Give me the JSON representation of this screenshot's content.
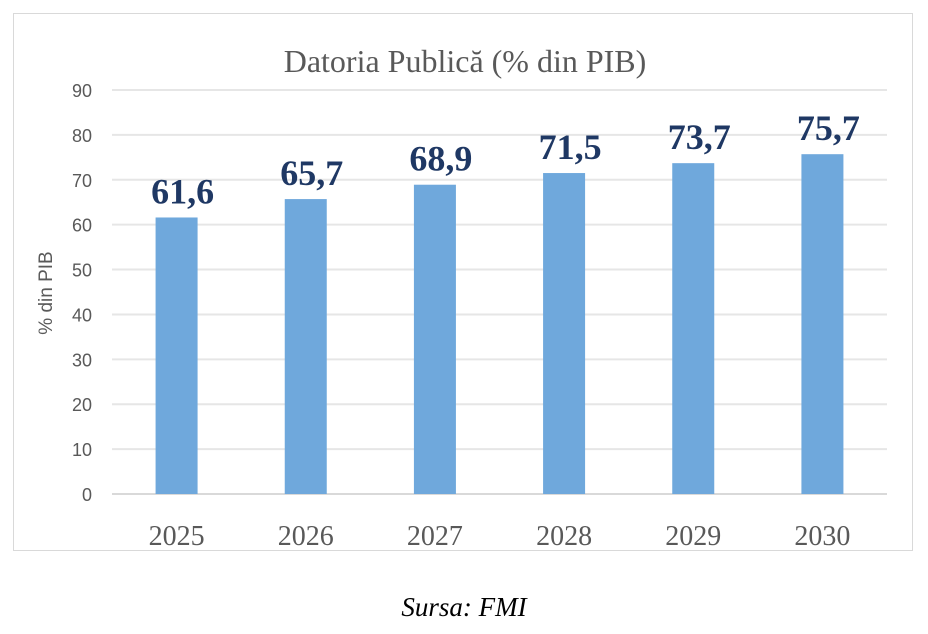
{
  "chart_data": {
    "type": "bar",
    "title": "Datoria Publică (% din PIB)",
    "xlabel": "",
    "ylabel": "% din PIB",
    "categories": [
      "2025",
      "2026",
      "2027",
      "2028",
      "2029",
      "2030"
    ],
    "values": [
      61.6,
      65.7,
      68.9,
      71.5,
      73.7,
      75.7
    ],
    "value_labels": [
      "61,6",
      "65,7",
      "68,9",
      "71,5",
      "73,7",
      "75,7"
    ],
    "ylim": [
      0,
      90
    ],
    "yticks": [
      "0",
      "10",
      "20",
      "30",
      "40",
      "50",
      "60",
      "70",
      "80",
      "90"
    ],
    "grid": true,
    "legend": "none",
    "colors": {
      "bar": "#6fa8dc",
      "value_label": "#1f3864",
      "grid": "#e6e6e6",
      "text": "#595959"
    }
  },
  "source": "Sursa: FMI"
}
